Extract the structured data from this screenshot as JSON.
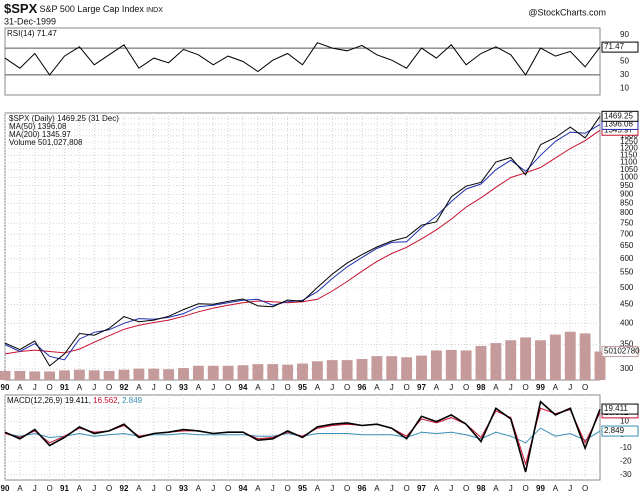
{
  "header": {
    "symbol": "$SPX",
    "name": "S&P 500 Large Cap Index",
    "exchange": "INDX",
    "date": "31-Dec-1999",
    "credit": "@StockCharts.com"
  },
  "chart_data": [
    {
      "type": "oscillator",
      "x": [
        1990,
        1990.25,
        1990.5,
        1990.75,
        1991,
        1991.25,
        1991.5,
        1991.75,
        1992,
        1992.25,
        1992.5,
        1992.75,
        1993,
        1993.25,
        1993.5,
        1993.75,
        1994,
        1994.25,
        1994.5,
        1994.75,
        1995,
        1995.25,
        1995.5,
        1995.75,
        1996,
        1996.25,
        1996.5,
        1996.75,
        1997,
        1997.25,
        1997.5,
        1997.75,
        1998,
        1998.25,
        1998.5,
        1998.75,
        1999,
        1999.25,
        1999.5,
        1999.75,
        2000
      ],
      "xlim": [
        1990,
        2000
      ],
      "ylim": [
        0,
        100
      ],
      "yticks": [
        10,
        30,
        50,
        70,
        90
      ],
      "bands": [
        30,
        70
      ],
      "series": [
        {
          "name": "RSI(14)",
          "color": "#000000",
          "kind": "line",
          "values": [
            55,
            40,
            62,
            30,
            58,
            72,
            45,
            60,
            75,
            40,
            55,
            48,
            68,
            60,
            45,
            58,
            50,
            35,
            52,
            62,
            45,
            78,
            70,
            66,
            74,
            60,
            52,
            40,
            70,
            55,
            75,
            45,
            62,
            72,
            60,
            30,
            70,
            58,
            65,
            42,
            71.47
          ]
        }
      ]
    },
    {
      "type": "price",
      "log": true,
      "x": [
        1990,
        1990.25,
        1990.5,
        1990.75,
        1991,
        1991.25,
        1991.5,
        1991.75,
        1992,
        1992.25,
        1992.5,
        1992.75,
        1993,
        1993.25,
        1993.5,
        1993.75,
        1994,
        1994.25,
        1994.5,
        1994.75,
        1995,
        1995.25,
        1995.5,
        1995.75,
        1996,
        1996.25,
        1996.5,
        1996.75,
        1997,
        1997.25,
        1997.5,
        1997.75,
        1998,
        1998.25,
        1998.5,
        1998.75,
        1999,
        1999.25,
        1999.5,
        1999.75,
        2000
      ],
      "xlim": [
        1990,
        2000
      ],
      "ylim": [
        280,
        1500
      ],
      "vlim": [
        0,
        4700000000
      ],
      "grid": true,
      "yticks": [
        300,
        350,
        400,
        450,
        500,
        550,
        600,
        650,
        700,
        750,
        800,
        850,
        900,
        950,
        1000,
        1050,
        1100,
        1150,
        1200,
        1250,
        1300,
        1350,
        1400,
        1450
      ],
      "xticks": [
        {
          "value": 1990,
          "label": "90"
        },
        {
          "value": 1990.25,
          "label": "A"
        },
        {
          "value": 1990.5,
          "label": "J"
        },
        {
          "value": 1990.75,
          "label": "O"
        },
        {
          "value": 1991,
          "label": "91"
        },
        {
          "value": 1991.25,
          "label": "A"
        },
        {
          "value": 1991.5,
          "label": "J"
        },
        {
          "value": 1991.75,
          "label": "O"
        },
        {
          "value": 1992,
          "label": "92"
        },
        {
          "value": 1992.25,
          "label": "A"
        },
        {
          "value": 1992.5,
          "label": "J"
        },
        {
          "value": 1992.75,
          "label": "O"
        },
        {
          "value": 1993,
          "label": "93"
        },
        {
          "value": 1993.25,
          "label": "A"
        },
        {
          "value": 1993.5,
          "label": "J"
        },
        {
          "value": 1993.75,
          "label": "O"
        },
        {
          "value": 1994,
          "label": "94"
        },
        {
          "value": 1994.25,
          "label": "A"
        },
        {
          "value": 1994.5,
          "label": "J"
        },
        {
          "value": 1994.75,
          "label": "O"
        },
        {
          "value": 1995,
          "label": "95"
        },
        {
          "value": 1995.25,
          "label": "A"
        },
        {
          "value": 1995.5,
          "label": "J"
        },
        {
          "value": 1995.75,
          "label": "O"
        },
        {
          "value": 1996,
          "label": "96"
        },
        {
          "value": 1996.25,
          "label": "A"
        },
        {
          "value": 1996.5,
          "label": "J"
        },
        {
          "value": 1996.75,
          "label": "O"
        },
        {
          "value": 1997,
          "label": "97"
        },
        {
          "value": 1997.25,
          "label": "A"
        },
        {
          "value": 1997.5,
          "label": "J"
        },
        {
          "value": 1997.75,
          "label": "O"
        },
        {
          "value": 1998,
          "label": "98"
        },
        {
          "value": 1998.25,
          "label": "A"
        },
        {
          "value": 1998.5,
          "label": "J"
        },
        {
          "value": 1998.75,
          "label": "O"
        },
        {
          "value": 1999,
          "label": "99"
        },
        {
          "value": 1999.25,
          "label": "A"
        },
        {
          "value": 1999.5,
          "label": "J"
        },
        {
          "value": 1999.75,
          "label": "O"
        }
      ],
      "series": [
        {
          "name": "Volume",
          "color": "#c49a9a",
          "kind": "bar",
          "axis": "volume",
          "legend_value": "501,027,808",
          "values": [
            160000000,
            160000000,
            150000000,
            150000000,
            170000000,
            180000000,
            170000000,
            160000000,
            180000000,
            200000000,
            200000000,
            190000000,
            210000000,
            250000000,
            250000000,
            250000000,
            260000000,
            280000000,
            280000000,
            270000000,
            290000000,
            330000000,
            350000000,
            350000000,
            370000000,
            420000000,
            420000000,
            400000000,
            430000000,
            520000000,
            530000000,
            520000000,
            600000000,
            650000000,
            700000000,
            750000000,
            700000000,
            800000000,
            850000000,
            820000000,
            501027808
          ]
        },
        {
          "name": "MA(200)",
          "color": "#c8102e",
          "kind": "line",
          "values": [
            330,
            335,
            338,
            335,
            332,
            340,
            355,
            370,
            385,
            395,
            402,
            408,
            418,
            430,
            440,
            448,
            455,
            460,
            458,
            455,
            458,
            465,
            490,
            520,
            555,
            590,
            620,
            645,
            680,
            720,
            770,
            830,
            880,
            940,
            1000,
            1030,
            1065,
            1130,
            1200,
            1260,
            1345.97
          ]
        },
        {
          "name": "MA(50)",
          "color": "#1f2fb0",
          "kind": "line",
          "values": [
            350,
            335,
            352,
            325,
            318,
            362,
            378,
            384,
            400,
            412,
            410,
            415,
            425,
            444,
            448,
            455,
            462,
            465,
            448,
            458,
            462,
            488,
            530,
            570,
            605,
            640,
            665,
            668,
            730,
            785,
            860,
            930,
            960,
            1050,
            1115,
            1040,
            1150,
            1255,
            1330,
            1320,
            1396.08
          ]
        },
        {
          "name": "$SPX (Daily)",
          "date_label": "(31 Dec)",
          "color": "#000000",
          "kind": "line",
          "values": [
            353,
            339,
            358,
            306,
            330,
            375,
            371,
            387,
            417,
            404,
            408,
            418,
            436,
            452,
            451,
            459,
            466,
            446,
            444,
            463,
            459,
            501,
            545,
            584,
            616,
            646,
            671,
            687,
            741,
            757,
            885,
            947,
            970,
            1102,
            1134,
            1017,
            1229,
            1286,
            1373,
            1283,
            1469.25
          ]
        }
      ]
    },
    {
      "type": "macd",
      "x": [
        1990,
        1990.25,
        1990.5,
        1990.75,
        1991,
        1991.25,
        1991.5,
        1991.75,
        1992,
        1992.25,
        1992.5,
        1992.75,
        1993,
        1993.25,
        1993.5,
        1993.75,
        1994,
        1994.25,
        1994.5,
        1994.75,
        1995,
        1995.25,
        1995.5,
        1995.75,
        1996,
        1996.25,
        1996.5,
        1996.75,
        1997,
        1997.25,
        1997.5,
        1997.75,
        1998,
        1998.25,
        1998.5,
        1998.75,
        1999,
        1999.25,
        1999.5,
        1999.75,
        2000
      ],
      "xlim": [
        1990,
        2000
      ],
      "ylim": [
        -34,
        30
      ],
      "yticks": [
        -30,
        -20,
        -10,
        0,
        10,
        20
      ],
      "grid": true,
      "xticks": [
        {
          "value": 1990,
          "label": "90"
        },
        {
          "value": 1990.25,
          "label": "A"
        },
        {
          "value": 1990.5,
          "label": "J"
        },
        {
          "value": 1990.75,
          "label": "O"
        },
        {
          "value": 1991,
          "label": "91"
        },
        {
          "value": 1991.25,
          "label": "A"
        },
        {
          "value": 1991.5,
          "label": "J"
        },
        {
          "value": 1991.75,
          "label": "O"
        },
        {
          "value": 1992,
          "label": "92"
        },
        {
          "value": 1992.25,
          "label": "A"
        },
        {
          "value": 1992.5,
          "label": "J"
        },
        {
          "value": 1992.75,
          "label": "O"
        },
        {
          "value": 1993,
          "label": "93"
        },
        {
          "value": 1993.25,
          "label": "A"
        },
        {
          "value": 1993.5,
          "label": "J"
        },
        {
          "value": 1993.75,
          "label": "O"
        },
        {
          "value": 1994,
          "label": "94"
        },
        {
          "value": 1994.25,
          "label": "A"
        },
        {
          "value": 1994.5,
          "label": "J"
        },
        {
          "value": 1994.75,
          "label": "O"
        },
        {
          "value": 1995,
          "label": "95"
        },
        {
          "value": 1995.25,
          "label": "A"
        },
        {
          "value": 1995.5,
          "label": "J"
        },
        {
          "value": 1995.75,
          "label": "O"
        },
        {
          "value": 1996,
          "label": "96"
        },
        {
          "value": 1996.25,
          "label": "A"
        },
        {
          "value": 1996.5,
          "label": "J"
        },
        {
          "value": 1996.75,
          "label": "O"
        },
        {
          "value": 1997,
          "label": "97"
        },
        {
          "value": 1997.25,
          "label": "A"
        },
        {
          "value": 1997.5,
          "label": "J"
        },
        {
          "value": 1997.75,
          "label": "O"
        },
        {
          "value": 1998,
          "label": "98"
        },
        {
          "value": 1998.25,
          "label": "A"
        },
        {
          "value": 1998.5,
          "label": "J"
        },
        {
          "value": 1998.75,
          "label": "O"
        },
        {
          "value": 1999,
          "label": "99"
        },
        {
          "value": 1999.25,
          "label": "A"
        },
        {
          "value": 1999.5,
          "label": "J"
        },
        {
          "value": 1999.75,
          "label": "O"
        }
      ],
      "series": [
        {
          "color": "#3a8fb7",
          "kind": "line",
          "values": [
            1,
            -1,
            1,
            -2,
            -1,
            1,
            -1,
            0,
            1,
            -1,
            0,
            0,
            1,
            0,
            0,
            0,
            0,
            -1,
            -1,
            1,
            -1,
            1,
            1,
            1,
            0,
            0,
            0,
            -2,
            2,
            1,
            2,
            0,
            -3,
            2,
            -1,
            -6,
            5,
            -1,
            1,
            -4,
            2.849
          ]
        },
        {
          "color": "#c8102e",
          "kind": "line",
          "values": [
            1,
            -2,
            3,
            -6,
            -1,
            5,
            2,
            3,
            7,
            -1,
            1,
            2,
            3,
            3,
            1,
            2,
            2,
            -3,
            -2,
            2,
            -1,
            5,
            7,
            8,
            7,
            8,
            5,
            -1,
            12,
            9,
            13,
            8,
            -2,
            18,
            13,
            -22,
            20,
            16,
            19,
            -6,
            16.562
          ]
        },
        {
          "name": "MACD(12,26,9)",
          "color": "#000000",
          "kind": "line",
          "width": 1.6,
          "values": [
            2,
            -3,
            4,
            -8,
            -2,
            6,
            1,
            3,
            8,
            -2,
            1,
            2,
            4,
            3,
            1,
            2,
            2,
            -4,
            -3,
            3,
            -2,
            6,
            8,
            9,
            7,
            8,
            5,
            -3,
            14,
            10,
            15,
            8,
            -5,
            20,
            12,
            -28,
            25,
            15,
            20,
            -10,
            19.411
          ]
        }
      ]
    }
  ]
}
